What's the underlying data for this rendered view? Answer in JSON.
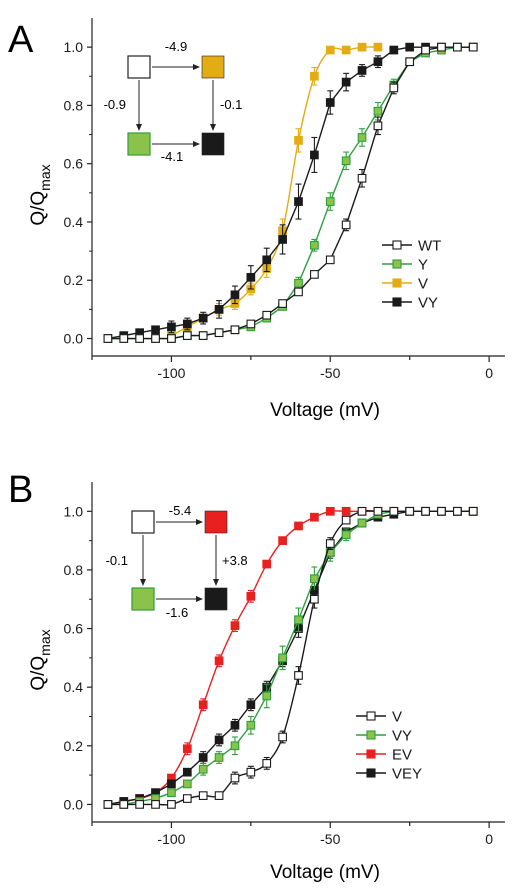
{
  "panels": [
    {
      "label": "A",
      "ylabel_main": "Q/Q",
      "ylabel_sub": "max",
      "xlabel": "Voltage (mV)",
      "scheme": {
        "top_label": "-4.9",
        "left_label": "-0.9",
        "right_label": "-0.1",
        "bottom_label": "-4.1",
        "colors": {
          "top_left": "#ffffff",
          "top_right": "#e3ac14",
          "bottom_left": "#8bc34a",
          "bottom_right": "#1a1a1a"
        }
      }
    },
    {
      "label": "B",
      "ylabel_main": "Q/Q",
      "ylabel_sub": "max",
      "xlabel": "Voltage (mV)",
      "scheme": {
        "top_label": "-5.4",
        "left_label": "-0.1",
        "right_label": "+3.8",
        "bottom_label": "-1.6",
        "colors": {
          "top_left": "#ffffff",
          "top_right": "#e82020",
          "bottom_left": "#8bc34a",
          "bottom_right": "#1a1a1a"
        }
      }
    }
  ],
  "chart_data": [
    {
      "type": "scatter",
      "title": "",
      "xlabel": "Voltage (mV)",
      "ylabel": "Q/Qmax",
      "xlim": [
        -125,
        5
      ],
      "ylim": [
        -0.06,
        1.1
      ],
      "xticks": [
        -100,
        -50,
        0
      ],
      "xtick_labels": [
        "-100",
        "-50",
        "0"
      ],
      "yticks": [
        0.0,
        0.2,
        0.4,
        0.6,
        0.8,
        1.0
      ],
      "ytick_labels": [
        "0.0",
        "0.2",
        "0.4",
        "0.6",
        "0.8",
        "1.0"
      ],
      "legend_position": "lower-right",
      "series": [
        {
          "name": "WT",
          "color": "#1a1a1a",
          "fill": "#ffffff",
          "marker": "open-square",
          "curve": false,
          "z": 4,
          "x": [
            -120,
            -115,
            -110,
            -105,
            -100,
            -95,
            -90,
            -85,
            -80,
            -75,
            -70,
            -65,
            -60,
            -55,
            -50,
            -45,
            -40,
            -35,
            -30,
            -25,
            -20,
            -15,
            -10,
            -5
          ],
          "y": [
            0.0,
            0.0,
            0.0,
            0.0,
            0.0,
            0.01,
            0.01,
            0.02,
            0.03,
            0.05,
            0.08,
            0.12,
            0.16,
            0.22,
            0.27,
            0.39,
            0.55,
            0.73,
            0.86,
            0.95,
            0.99,
            1.0,
            1.0,
            1.0
          ],
          "err": [
            0,
            0,
            0,
            0,
            0,
            0.01,
            0.01,
            0.01,
            0.01,
            0.01,
            0.01,
            0.01,
            0.01,
            0.01,
            0.01,
            0.02,
            0.03,
            0.03,
            0.02,
            0.01,
            0,
            0,
            0,
            0
          ]
        },
        {
          "name": "Y",
          "color": "#2e9e3e",
          "fill": "#8bc34a",
          "marker": "square",
          "curve": false,
          "z": 3,
          "x": [
            -120,
            -115,
            -110,
            -105,
            -100,
            -95,
            -90,
            -85,
            -80,
            -75,
            -70,
            -65,
            -60,
            -55,
            -50,
            -45,
            -40,
            -35,
            -30,
            -25,
            -20,
            -15,
            -10,
            -5
          ],
          "y": [
            0.0,
            0.0,
            0.0,
            0.0,
            0.0,
            0.01,
            0.01,
            0.02,
            0.03,
            0.04,
            0.07,
            0.11,
            0.19,
            0.32,
            0.47,
            0.61,
            0.69,
            0.78,
            0.87,
            0.95,
            0.98,
            0.99,
            1.0,
            1.0
          ],
          "err": [
            0,
            0,
            0,
            0,
            0,
            0,
            0.01,
            0.01,
            0.01,
            0.01,
            0.01,
            0.01,
            0.02,
            0.02,
            0.03,
            0.03,
            0.03,
            0.03,
            0.02,
            0.01,
            0.01,
            0,
            0,
            0
          ]
        },
        {
          "name": "V",
          "color": "#e3ac14",
          "fill": "#e3ac14",
          "marker": "square",
          "curve": true,
          "z": 1,
          "x": [
            -100,
            -95,
            -90,
            -85,
            -80,
            -75,
            -70,
            -65,
            -60,
            -55,
            -50,
            -45,
            -40,
            -35
          ],
          "y": [
            0.01,
            0.04,
            0.07,
            0.1,
            0.12,
            0.17,
            0.24,
            0.37,
            0.68,
            0.9,
            0.99,
            0.99,
            1.0,
            1.0
          ],
          "err": [
            0.01,
            0.01,
            0.01,
            0.02,
            0.02,
            0.02,
            0.03,
            0.04,
            0.04,
            0.03,
            0.01,
            0,
            0,
            0
          ]
        },
        {
          "name": "VY",
          "color": "#1a1a1a",
          "fill": "#1a1a1a",
          "marker": "square",
          "curve": false,
          "z": 2,
          "x": [
            -120,
            -115,
            -110,
            -105,
            -100,
            -95,
            -90,
            -85,
            -80,
            -75,
            -70,
            -65,
            -60,
            -55,
            -50,
            -45,
            -40,
            -35,
            -30,
            -25,
            -20,
            -15,
            -10,
            -5
          ],
          "y": [
            0.0,
            0.01,
            0.02,
            0.03,
            0.04,
            0.05,
            0.07,
            0.1,
            0.15,
            0.21,
            0.27,
            0.34,
            0.47,
            0.63,
            0.81,
            0.88,
            0.92,
            0.95,
            0.99,
            1.0,
            1.0,
            1.0,
            1.0,
            1.0
          ],
          "err": [
            0,
            0.01,
            0.01,
            0.01,
            0.02,
            0.02,
            0.02,
            0.03,
            0.03,
            0.04,
            0.04,
            0.05,
            0.06,
            0.06,
            0.04,
            0.03,
            0.02,
            0.02,
            0.01,
            0,
            0,
            0,
            0,
            0
          ]
        }
      ]
    },
    {
      "type": "scatter",
      "title": "",
      "xlabel": "Voltage (mV)",
      "ylabel": "Q/Qmax",
      "xlim": [
        -125,
        5
      ],
      "ylim": [
        -0.06,
        1.1
      ],
      "xticks": [
        -100,
        -50,
        0
      ],
      "xtick_labels": [
        "-100",
        "-50",
        "0"
      ],
      "yticks": [
        0.0,
        0.2,
        0.4,
        0.6,
        0.8,
        1.0
      ],
      "ytick_labels": [
        "0.0",
        "0.2",
        "0.4",
        "0.6",
        "0.8",
        "1.0"
      ],
      "legend_position": "lower-right",
      "series": [
        {
          "name": "V",
          "color": "#1a1a1a",
          "fill": "#ffffff",
          "marker": "open-square",
          "curve": true,
          "z": 4,
          "x": [
            -120,
            -115,
            -110,
            -105,
            -100,
            -95,
            -90,
            -85,
            -80,
            -75,
            -70,
            -65,
            -60,
            -55,
            -50,
            -45,
            -40,
            -35,
            -30,
            -25,
            -20,
            -15,
            -10,
            -5
          ],
          "y": [
            0.0,
            0.0,
            0.0,
            0.0,
            0.0,
            0.02,
            0.03,
            0.03,
            0.09,
            0.11,
            0.14,
            0.23,
            0.44,
            0.7,
            0.89,
            0.97,
            1.0,
            1.0,
            1.0,
            1.0,
            1.0,
            1.0,
            1.0,
            1.0
          ],
          "err": [
            0,
            0,
            0,
            0,
            0,
            0.01,
            0.01,
            0.01,
            0.02,
            0.02,
            0.02,
            0.02,
            0.03,
            0.03,
            0.02,
            0.01,
            0,
            0,
            0,
            0,
            0,
            0,
            0,
            0
          ]
        },
        {
          "name": "VY",
          "color": "#2e9e3e",
          "fill": "#8bc34a",
          "marker": "square",
          "curve": false,
          "z": 3,
          "x": [
            -120,
            -115,
            -110,
            -105,
            -100,
            -95,
            -90,
            -85,
            -80,
            -75,
            -70,
            -65,
            -60,
            -55,
            -50,
            -45,
            -40,
            -35,
            -30,
            -25,
            -20,
            -15,
            -10,
            -5
          ],
          "y": [
            0.0,
            0.0,
            0.01,
            0.02,
            0.04,
            0.07,
            0.12,
            0.16,
            0.2,
            0.27,
            0.37,
            0.5,
            0.63,
            0.77,
            0.86,
            0.92,
            0.96,
            0.99,
            1.0,
            1.0,
            1.0,
            1.0,
            1.0,
            1.0
          ],
          "err": [
            0,
            0,
            0.01,
            0.01,
            0.01,
            0.01,
            0.02,
            0.02,
            0.03,
            0.03,
            0.04,
            0.04,
            0.04,
            0.04,
            0.03,
            0.02,
            0.01,
            0.01,
            0,
            0,
            0,
            0,
            0,
            0
          ]
        },
        {
          "name": "EV",
          "color": "#e82020",
          "fill": "#e82020",
          "marker": "square",
          "curve": true,
          "z": 1,
          "x": [
            -120,
            -115,
            -110,
            -105,
            -100,
            -95,
            -90,
            -85,
            -80,
            -75,
            -70,
            -65,
            -60,
            -55,
            -50,
            -45,
            -40,
            -35,
            -30,
            -25,
            -20,
            -15,
            -10,
            -5
          ],
          "y": [
            0.0,
            0.01,
            0.02,
            0.04,
            0.09,
            0.19,
            0.34,
            0.49,
            0.61,
            0.71,
            0.82,
            0.9,
            0.95,
            0.98,
            1.0,
            1.0,
            1.0,
            1.0,
            1.0,
            1.0,
            1.0,
            1.0,
            1.0,
            1.0
          ],
          "err": [
            0,
            0,
            0.01,
            0.01,
            0.01,
            0.02,
            0.02,
            0.02,
            0.02,
            0.02,
            0.01,
            0.01,
            0.01,
            0,
            0,
            0,
            0,
            0,
            0,
            0,
            0,
            0,
            0,
            0
          ]
        },
        {
          "name": "VEY",
          "color": "#1a1a1a",
          "fill": "#1a1a1a",
          "marker": "square",
          "curve": false,
          "z": 2,
          "x": [
            -120,
            -115,
            -110,
            -105,
            -100,
            -95,
            -90,
            -85,
            -80,
            -75,
            -70,
            -65,
            -60,
            -55,
            -50,
            -45,
            -40,
            -35,
            -30,
            -25,
            -20,
            -15,
            -10,
            -5
          ],
          "y": [
            0.0,
            0.01,
            0.02,
            0.04,
            0.07,
            0.11,
            0.16,
            0.22,
            0.27,
            0.34,
            0.4,
            0.49,
            0.6,
            0.73,
            0.86,
            0.93,
            0.96,
            0.98,
            0.99,
            1.0,
            1.0,
            1.0,
            1.0,
            1.0
          ],
          "err": [
            0,
            0.01,
            0.01,
            0.01,
            0.01,
            0.01,
            0.02,
            0.02,
            0.02,
            0.02,
            0.02,
            0.02,
            0.03,
            0.03,
            0.02,
            0.01,
            0.01,
            0,
            0,
            0,
            0,
            0,
            0,
            0
          ]
        }
      ]
    }
  ]
}
